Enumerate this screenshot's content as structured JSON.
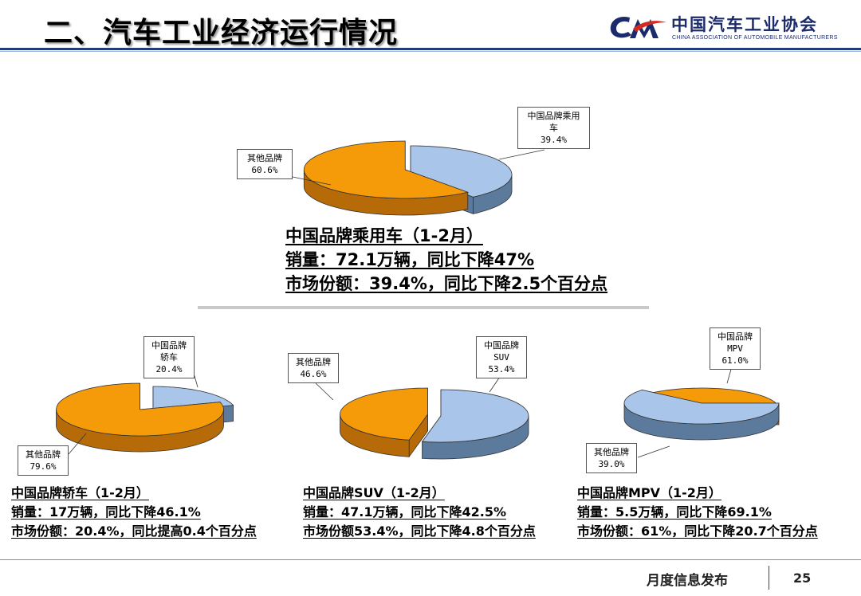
{
  "header": {
    "title": "二、汽车工业经济运行情况",
    "logo_name": "中国汽车工业协会",
    "logo_en": "CHINA ASSOCIATION OF AUTOMOBILE MANUFACTURERS"
  },
  "colors": {
    "china_brand": "#a9c5ea",
    "china_brand_side": "#5b7a9c",
    "other_brand": "#f59b0a",
    "other_brand_side": "#b66a08"
  },
  "chart_data": [
    {
      "type": "pie",
      "categories": [
        "中国品牌乘用车",
        "其他品牌"
      ],
      "values": [
        39.4,
        60.6
      ],
      "labels": [
        [
          "中国品牌乘用",
          "车",
          "39.4%"
        ],
        [
          "其他品牌",
          "60.6%"
        ]
      ],
      "title": "",
      "summary": [
        "中国品牌乘用车（1-2月）",
        "销量：72.1万辆，同比下降47%",
        "市场份额：39.4%，同比下降2.5个百分点"
      ]
    },
    {
      "type": "pie",
      "categories": [
        "中国品牌轿车",
        "其他品牌"
      ],
      "values": [
        20.4,
        79.6
      ],
      "labels": [
        [
          "中国品牌",
          "轿车",
          "20.4%"
        ],
        [
          "其他品牌",
          "79.6%"
        ]
      ],
      "title": "",
      "summary": [
        "中国品牌轿车（1-2月）",
        "销量：17万辆，同比下降46.1%",
        "市场份额：20.4%，同比提高0.4个百分点"
      ]
    },
    {
      "type": "pie",
      "categories": [
        "中国品牌SUV",
        "其他品牌"
      ],
      "values": [
        53.4,
        46.6
      ],
      "labels": [
        [
          "中国品牌",
          "SUV",
          "53.4%"
        ],
        [
          "其他品牌",
          "46.6%"
        ]
      ],
      "title": "",
      "summary": [
        "中国品牌SUV（1-2月）",
        "销量：47.1万辆，同比下降42.5%",
        "市场份额53.4%，同比下降4.8个百分点"
      ]
    },
    {
      "type": "pie",
      "categories": [
        "中国品牌MPV",
        "其他品牌"
      ],
      "values": [
        61.0,
        39.0
      ],
      "labels": [
        [
          "中国品牌",
          "MPV",
          "61.0%"
        ],
        [
          "其他品牌",
          "39.0%"
        ]
      ],
      "title": "",
      "summary": [
        "中国品牌MPV（1-2月）",
        "销量：5.5万辆，同比下降69.1%",
        "市场份额：61%，同比下降20.7个百分点"
      ]
    }
  ],
  "footer": {
    "label": "月度信息发布",
    "page": "25"
  }
}
